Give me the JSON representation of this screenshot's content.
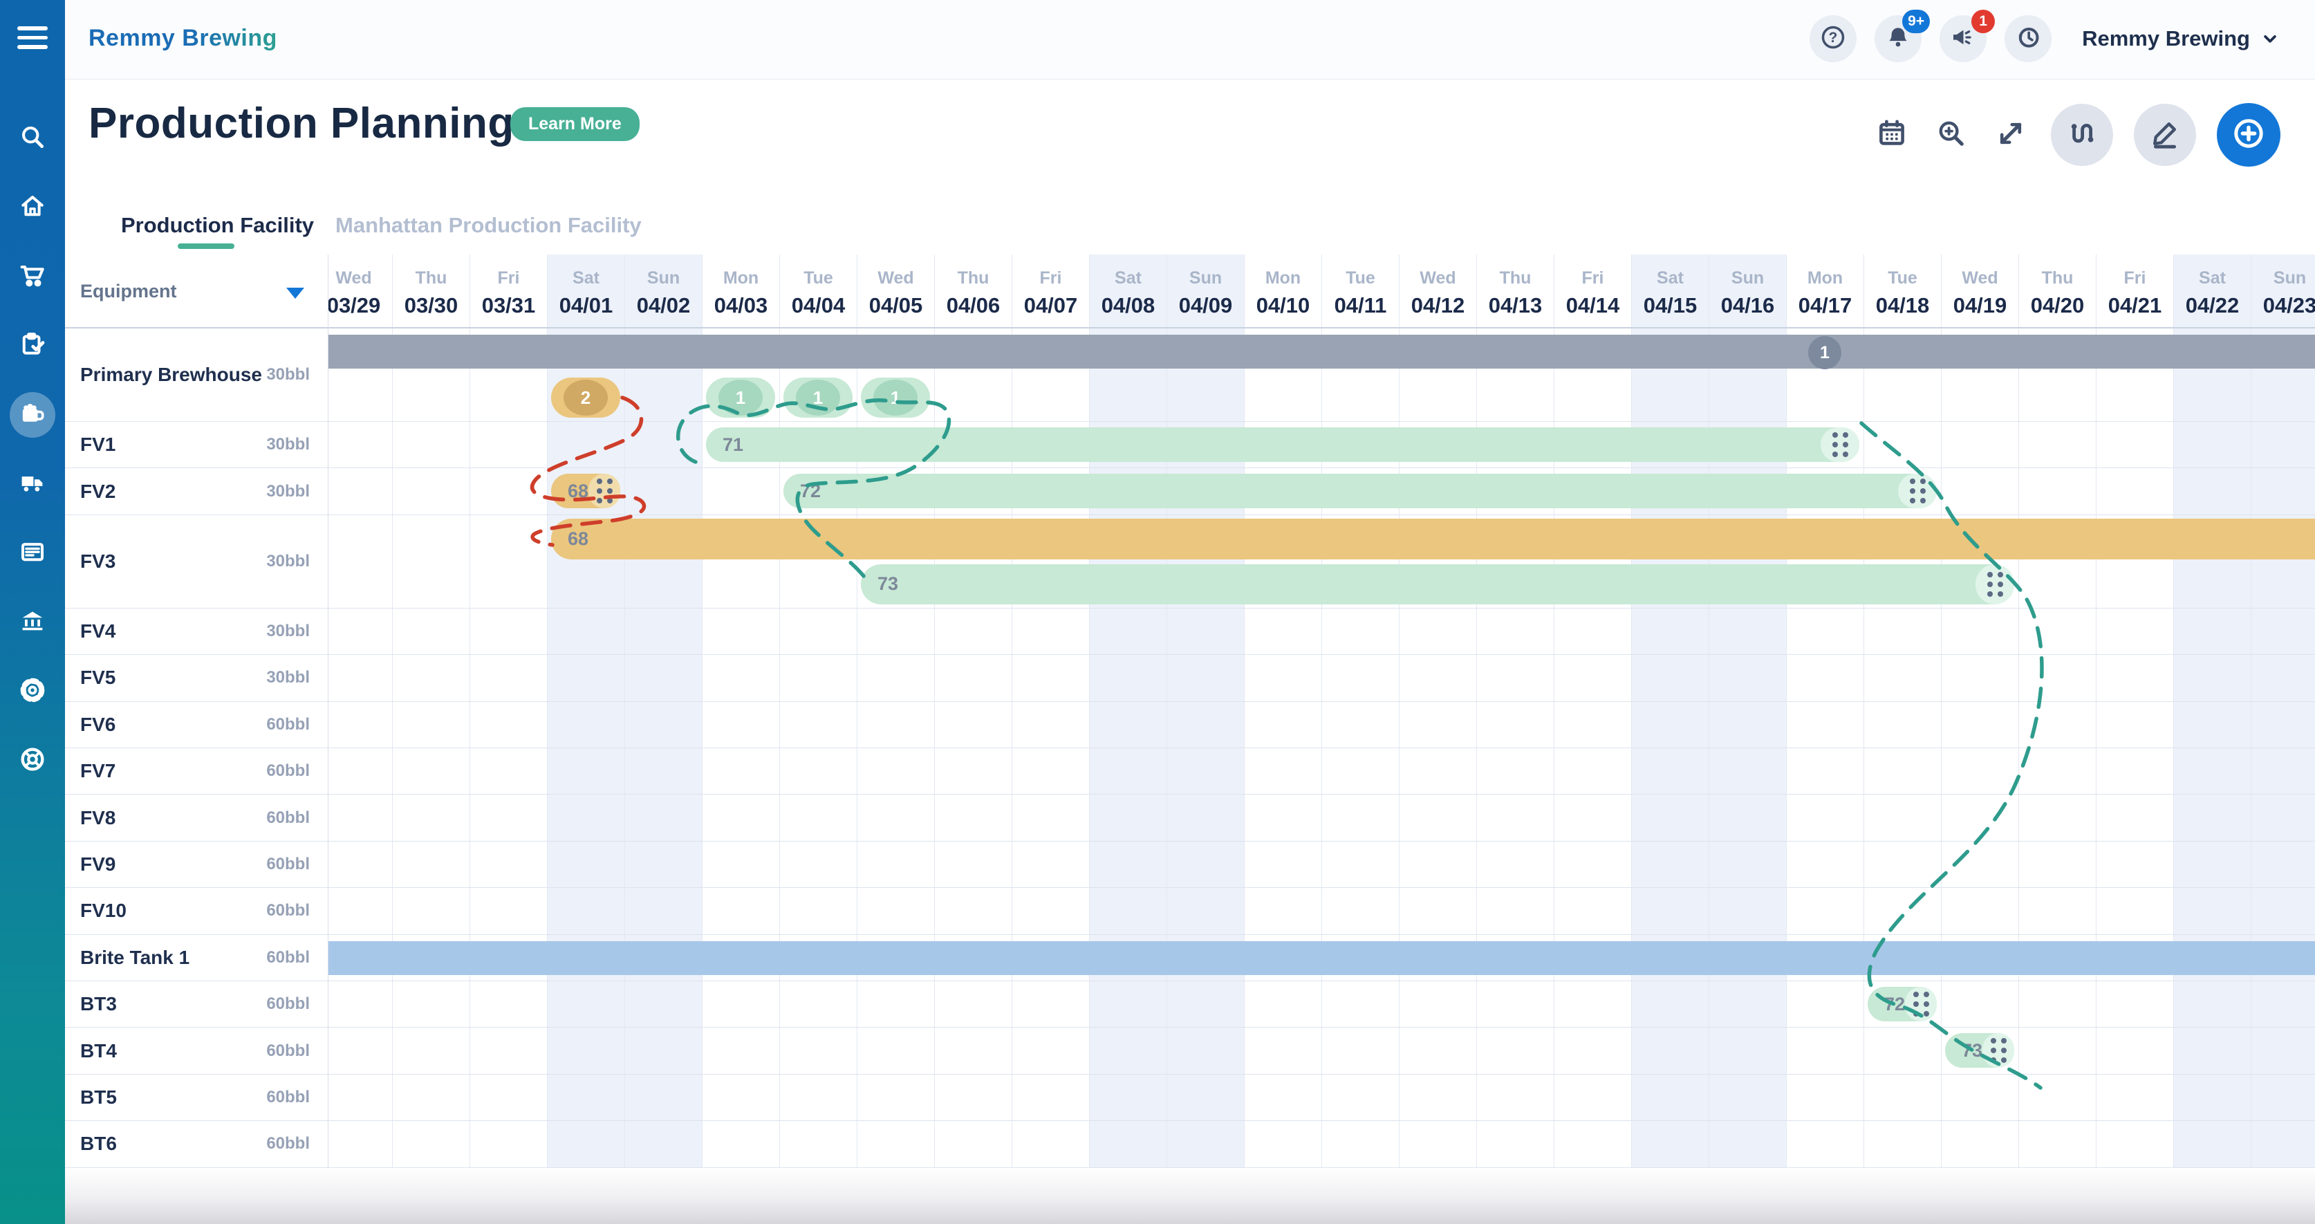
{
  "app": {
    "logo": "Remmy Brewing",
    "account": "Remmy Brewing"
  },
  "header": {
    "title": "Production Planning",
    "learn_more": "Learn More",
    "notification_count": "9+",
    "announcement_count": "1",
    "icons": [
      "help-icon",
      "bell-icon",
      "megaphone-icon",
      "history-icon"
    ]
  },
  "sidebar": {
    "items": [
      {
        "icon": "search-icon",
        "active": false
      },
      {
        "icon": "home-icon",
        "active": false
      },
      {
        "icon": "cart-icon",
        "active": false
      },
      {
        "icon": "clipboard-check-icon",
        "active": false
      },
      {
        "icon": "beer-mug-icon",
        "active": true
      },
      {
        "icon": "truck-icon",
        "active": false
      },
      {
        "icon": "news-icon",
        "active": false
      },
      {
        "icon": "bank-icon",
        "active": false
      },
      {
        "icon": "gear-icon",
        "active": false
      },
      {
        "icon": "lifebuoy-icon",
        "active": false
      }
    ]
  },
  "toolbar": {
    "items": [
      {
        "icon": "calendar-icon",
        "style": "plain"
      },
      {
        "icon": "zoom-in-icon",
        "style": "plain"
      },
      {
        "icon": "expand-icon",
        "style": "plain"
      },
      {
        "icon": "route-icon",
        "style": "circle"
      },
      {
        "icon": "pencil-icon",
        "style": "circle"
      },
      {
        "icon": "add-icon",
        "style": "primary"
      }
    ]
  },
  "tabs": [
    {
      "label": "Production Facility",
      "active": true
    },
    {
      "label": "Manhattan Production Facility",
      "active": false
    }
  ],
  "grid": {
    "equipment_header": "Equipment",
    "timeline": [
      {
        "day": "Wed",
        "date": "03/29",
        "weekend": false
      },
      {
        "day": "Thu",
        "date": "03/30",
        "weekend": false
      },
      {
        "day": "Fri",
        "date": "03/31",
        "weekend": false
      },
      {
        "day": "Sat",
        "date": "04/01",
        "weekend": true
      },
      {
        "day": "Sun",
        "date": "04/02",
        "weekend": true
      },
      {
        "day": "Mon",
        "date": "04/03",
        "weekend": false
      },
      {
        "day": "Tue",
        "date": "04/04",
        "weekend": false
      },
      {
        "day": "Wed",
        "date": "04/05",
        "weekend": false
      },
      {
        "day": "Thu",
        "date": "04/06",
        "weekend": false
      },
      {
        "day": "Fri",
        "date": "04/07",
        "weekend": false
      },
      {
        "day": "Sat",
        "date": "04/08",
        "weekend": true
      },
      {
        "day": "Sun",
        "date": "04/09",
        "weekend": true
      },
      {
        "day": "Mon",
        "date": "04/10",
        "weekend": false
      },
      {
        "day": "Tue",
        "date": "04/11",
        "weekend": false
      },
      {
        "day": "Wed",
        "date": "04/12",
        "weekend": false
      },
      {
        "day": "Thu",
        "date": "04/13",
        "weekend": false
      },
      {
        "day": "Fri",
        "date": "04/14",
        "weekend": false
      },
      {
        "day": "Sat",
        "date": "04/15",
        "weekend": true
      },
      {
        "day": "Sun",
        "date": "04/16",
        "weekend": true
      },
      {
        "day": "Mon",
        "date": "04/17",
        "weekend": false
      },
      {
        "day": "Tue",
        "date": "04/18",
        "weekend": false
      },
      {
        "day": "Wed",
        "date": "04/19",
        "weekend": false
      },
      {
        "day": "Thu",
        "date": "04/20",
        "weekend": false
      },
      {
        "day": "Fri",
        "date": "04/21",
        "weekend": false
      },
      {
        "day": "Sat",
        "date": "04/22",
        "weekend": true
      },
      {
        "day": "Sun",
        "date": "04/23",
        "weekend": true
      }
    ],
    "rows": [
      {
        "name": "Primary Brewhouse",
        "capacity": "30bbl",
        "height": "tall",
        "bars": [
          {
            "type": "band",
            "palette": "gray",
            "sub": 0
          },
          {
            "type": "circle-chip",
            "label": "1",
            "palette": "gray",
            "date": "04/17",
            "sub": 0
          },
          {
            "type": "pill",
            "label": "2",
            "palette": "orange",
            "start": "04/01",
            "end": "04/01",
            "sub": 1,
            "inner": true
          },
          {
            "type": "pill",
            "label": "1",
            "palette": "green",
            "start": "04/03",
            "end": "04/03",
            "sub": 1,
            "inner": true
          },
          {
            "type": "pill",
            "label": "1",
            "palette": "green",
            "start": "04/04",
            "end": "04/04",
            "sub": 1,
            "inner": true
          },
          {
            "type": "pill",
            "label": "1",
            "palette": "green",
            "start": "04/05",
            "end": "04/05",
            "sub": 1,
            "inner": true
          }
        ]
      },
      {
        "name": "FV1",
        "capacity": "30bbl",
        "bars": [
          {
            "type": "pill",
            "label": "71",
            "palette": "green",
            "start": "04/03",
            "end": "04/17",
            "handle": true
          }
        ]
      },
      {
        "name": "FV2",
        "capacity": "30bbl",
        "bars": [
          {
            "type": "pill",
            "label": "68",
            "palette": "orange",
            "start": "04/01",
            "end": "04/01",
            "handle": true
          },
          {
            "type": "pill",
            "label": "72",
            "palette": "green",
            "start": "04/04",
            "end": "04/18",
            "handle": true
          }
        ]
      },
      {
        "name": "FV3",
        "capacity": "30bbl",
        "height": "tall",
        "bars": [
          {
            "type": "pill",
            "label": "68",
            "palette": "orange",
            "start": "04/01",
            "end": "overflow",
            "sub": 0
          },
          {
            "type": "pill",
            "label": "73",
            "palette": "green",
            "start": "04/05",
            "end": "04/19",
            "handle": true,
            "sub": 1
          }
        ]
      },
      {
        "name": "FV4",
        "capacity": "30bbl",
        "bars": []
      },
      {
        "name": "FV5",
        "capacity": "30bbl",
        "bars": []
      },
      {
        "name": "FV6",
        "capacity": "60bbl",
        "bars": []
      },
      {
        "name": "FV7",
        "capacity": "60bbl",
        "bars": []
      },
      {
        "name": "FV8",
        "capacity": "60bbl",
        "bars": []
      },
      {
        "name": "FV9",
        "capacity": "60bbl",
        "bars": []
      },
      {
        "name": "FV10",
        "capacity": "60bbl",
        "bars": []
      },
      {
        "name": "Brite Tank 1",
        "capacity": "60bbl",
        "bars": [
          {
            "type": "band",
            "palette": "blue"
          }
        ]
      },
      {
        "name": "BT3",
        "capacity": "60bbl",
        "bars": [
          {
            "type": "pill",
            "label": "72",
            "palette": "green",
            "start": "04/18",
            "end": "04/18",
            "handle": true
          }
        ]
      },
      {
        "name": "BT4",
        "capacity": "60bbl",
        "bars": [
          {
            "type": "pill",
            "label": "73",
            "palette": "green",
            "start": "04/19",
            "end": "04/19",
            "handle": true
          }
        ]
      },
      {
        "name": "BT5",
        "capacity": "60bbl",
        "bars": []
      },
      {
        "name": "BT6",
        "capacity": "60bbl",
        "bars": []
      }
    ]
  },
  "palettes": {
    "orange": {
      "bar": "#eac67f",
      "inner": "#d0a964",
      "cap": "#f1ddab"
    },
    "green": {
      "bar": "#c7e9d5",
      "inner": "#a6d7bf",
      "cap": "#e0f4ea"
    },
    "gray": {
      "bar": "#99a3b3",
      "inner": "#7d8a9e",
      "cap": "#b2bac7"
    },
    "blue": {
      "bar": "#a7c7e9",
      "inner": "#8fb4dd",
      "cap": "#c3d9f0"
    }
  },
  "annotations": {
    "red": "#ce3e2a",
    "teal": "#2e9c8d"
  }
}
